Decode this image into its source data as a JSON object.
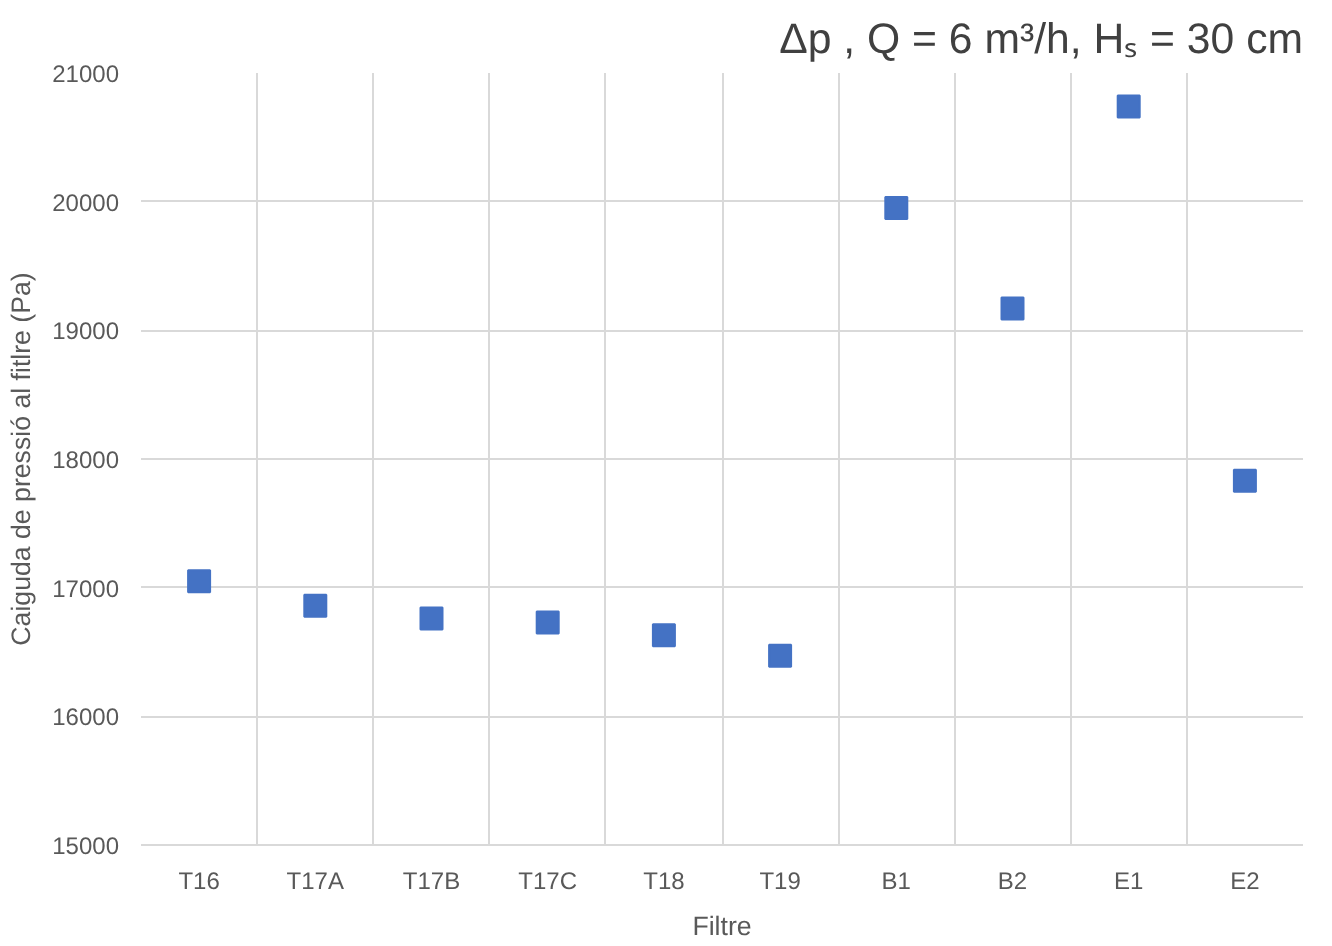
{
  "chart_data": {
    "type": "scatter",
    "title": "Δp , Q = 6 m³/h, Hₛ = 30 cm",
    "xlabel": "Filtre",
    "ylabel": "Caiguda de pressió al fitlre (Pa)",
    "categories": [
      "T16",
      "T17A",
      "T17B",
      "T17C",
      "T18",
      "T19",
      "B1",
      "B2",
      "E1",
      "E2"
    ],
    "series": [
      {
        "color": "#4472c4",
        "values": [
          17050,
          16860,
          16760,
          16730,
          16630,
          16470,
          19950,
          19170,
          20740,
          17830
        ]
      }
    ],
    "ylim": [
      15000,
      21000
    ],
    "yticks": [
      15000,
      16000,
      17000,
      18000,
      19000,
      20000,
      21000
    ],
    "grid": true,
    "marker": "square"
  }
}
